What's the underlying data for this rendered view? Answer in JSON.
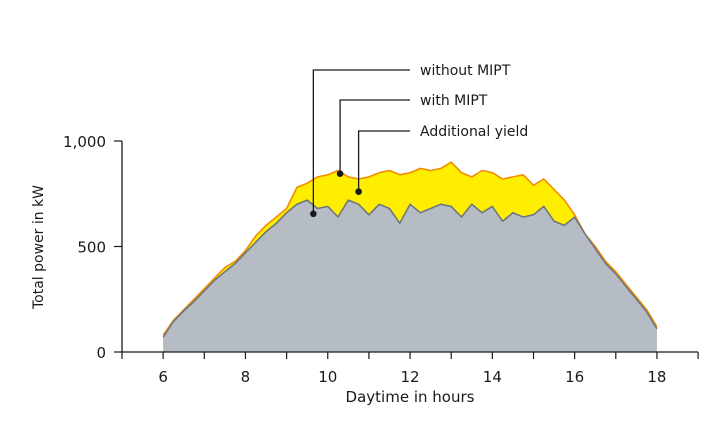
{
  "chart_data": {
    "type": "area",
    "xlabel": "Daytime in hours",
    "ylabel": "Total power in kW",
    "xlim": [
      5,
      19
    ],
    "ylim": [
      0,
      1000
    ],
    "x_ticks": [
      5,
      6,
      7,
      8,
      9,
      10,
      11,
      12,
      13,
      14,
      15,
      16,
      17,
      18,
      19
    ],
    "x_tick_labels": [
      {
        "v": 6,
        "t": "6"
      },
      {
        "v": 8,
        "t": "8"
      },
      {
        "v": 10,
        "t": "10"
      },
      {
        "v": 12,
        "t": "12"
      },
      {
        "v": 14,
        "t": "14"
      },
      {
        "v": 16,
        "t": "16"
      },
      {
        "v": 18,
        "t": "18"
      }
    ],
    "y_tick_labels": [
      {
        "v": 0,
        "t": "0"
      },
      {
        "v": 500,
        "t": "500"
      },
      {
        "v": 1000,
        "t": "1,000"
      }
    ],
    "grid": false,
    "x": [
      6,
      6.25,
      6.5,
      6.75,
      7,
      7.25,
      7.5,
      7.75,
      8,
      8.25,
      8.5,
      8.75,
      9,
      9.25,
      9.5,
      9.75,
      10,
      10.25,
      10.5,
      10.75,
      11,
      11.25,
      11.5,
      11.75,
      12,
      12.25,
      12.5,
      12.75,
      13,
      13.25,
      13.5,
      13.75,
      14,
      14.25,
      14.5,
      14.75,
      15,
      15.25,
      15.5,
      15.75,
      16,
      16.25,
      16.5,
      16.75,
      17,
      17.25,
      17.5,
      17.75,
      18
    ],
    "series": [
      {
        "name": "with MIPT",
        "color": "#f28c00",
        "fill": "#ffee00",
        "values": [
          80,
          150,
          200,
          250,
          300,
          350,
          400,
          430,
          480,
          550,
          600,
          640,
          680,
          780,
          800,
          830,
          840,
          860,
          830,
          820,
          830,
          850,
          860,
          840,
          850,
          870,
          860,
          870,
          900,
          850,
          830,
          860,
          850,
          820,
          830,
          840,
          790,
          820,
          770,
          720,
          650,
          560,
          500,
          430,
          380,
          320,
          260,
          200,
          120
        ]
      },
      {
        "name": "without MIPT",
        "color": "#6f767d",
        "fill": "#b5bcc4",
        "values": [
          70,
          145,
          195,
          240,
          290,
          340,
          380,
          420,
          470,
          520,
          570,
          610,
          660,
          700,
          720,
          680,
          690,
          640,
          720,
          700,
          650,
          700,
          680,
          610,
          700,
          660,
          680,
          700,
          690,
          640,
          700,
          660,
          690,
          620,
          660,
          640,
          650,
          690,
          620,
          600,
          640,
          560,
          490,
          420,
          370,
          310,
          250,
          190,
          110
        ]
      }
    ],
    "annotations": [
      {
        "text": "without MIPT",
        "x": 9.65,
        "y": 655
      },
      {
        "text": "with MIPT",
        "x": 10.3,
        "y": 845
      },
      {
        "text": "Additional yield",
        "x": 10.75,
        "y": 760
      }
    ]
  }
}
